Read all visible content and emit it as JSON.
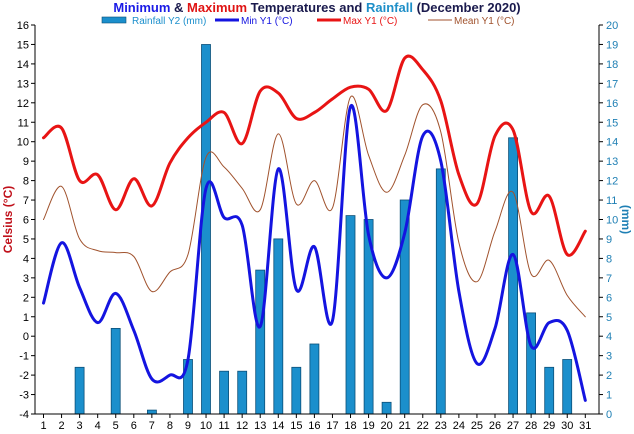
{
  "chart_data": {
    "type": "bar+line",
    "title_parts": [
      {
        "text": "Minimum",
        "style": "blue"
      },
      {
        "text": " & ",
        "style": "dark"
      },
      {
        "text": "Maximum",
        "style": "red"
      },
      {
        "text": " Temperatures and ",
        "style": "dark"
      },
      {
        "text": "Rainfall",
        "style": "cyan"
      },
      {
        "text": " (December 2020)",
        "style": "dark"
      }
    ],
    "ylabel_left": "Celsius (°C)",
    "ylabel_right": "(mm)",
    "xlabel": "",
    "ylim_left": [
      -4,
      16
    ],
    "ylim_right": [
      0,
      20
    ],
    "yticks_left": [
      -4,
      -3,
      -2,
      -1,
      0,
      1,
      2,
      3,
      4,
      5,
      6,
      7,
      8,
      9,
      10,
      11,
      12,
      13,
      14,
      15,
      16
    ],
    "yticks_right": [
      0,
      1,
      2,
      3,
      4,
      5,
      6,
      7,
      8,
      9,
      10,
      11,
      12,
      13,
      14,
      15,
      16,
      17,
      18,
      19,
      20
    ],
    "x": [
      1,
      2,
      3,
      4,
      5,
      6,
      7,
      8,
      9,
      10,
      11,
      12,
      13,
      14,
      15,
      16,
      17,
      18,
      19,
      20,
      21,
      22,
      23,
      24,
      25,
      26,
      27,
      28,
      29,
      30,
      31
    ],
    "grid": false,
    "legend_position": "top",
    "series": [
      {
        "name": "Rainfall Y2 (mm)",
        "kind": "bar",
        "axis": "right",
        "color": "#1b8fcc",
        "values": [
          0,
          0,
          2.4,
          0,
          4.4,
          0,
          0.2,
          0,
          2.8,
          19,
          2.2,
          2.2,
          7.4,
          9,
          2.4,
          3.6,
          0,
          10.2,
          10,
          0.6,
          11,
          0,
          12.6,
          0,
          0,
          0,
          14.2,
          5.2,
          2.4,
          2.8,
          0
        ]
      },
      {
        "name": "Min Y1 (°C)",
        "kind": "line",
        "axis": "left",
        "color": "#1414e0",
        "values": [
          1.7,
          4.8,
          2.5,
          0.7,
          2.2,
          0.3,
          -2.2,
          -2.0,
          -1.2,
          7.6,
          6.1,
          5.7,
          0.5,
          8.6,
          2.4,
          4.6,
          0.8,
          11.8,
          5.2,
          3.0,
          5.3,
          10.3,
          9.0,
          2.3,
          -1.4,
          0.4,
          4.2,
          -0.5,
          0.7,
          0.3,
          -3.3
        ]
      },
      {
        "name": "Max Y1 (°C)",
        "kind": "line",
        "axis": "left",
        "color": "#e81414",
        "values": [
          10.2,
          10.7,
          8.0,
          8.3,
          6.5,
          8.1,
          6.7,
          8.9,
          10.2,
          11.0,
          11.5,
          9.9,
          12.6,
          12.5,
          11.2,
          11.5,
          12.2,
          12.8,
          12.7,
          11.6,
          14.3,
          13.7,
          12.1,
          8.3,
          6.8,
          10.3,
          10.6,
          6.4,
          7.2,
          4.2,
          5.4
        ]
      },
      {
        "name": "Mean Y1 (°C)",
        "kind": "line",
        "axis": "left",
        "color": "#a0522d",
        "values": [
          6.0,
          7.7,
          5.0,
          4.4,
          4.3,
          4.1,
          2.3,
          3.3,
          4.2,
          9.2,
          8.7,
          7.6,
          6.5,
          10.4,
          6.8,
          8.0,
          6.6,
          12.3,
          9.3,
          7.4,
          9.3,
          11.9,
          10.5,
          4.8,
          2.8,
          5.4,
          7.4,
          3.2,
          3.9,
          2.1,
          1.0
        ]
      }
    ]
  }
}
